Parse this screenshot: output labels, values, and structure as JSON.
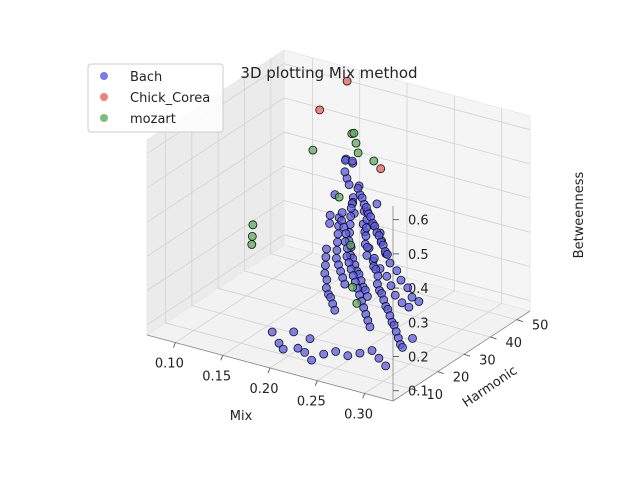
{
  "chart_data": {
    "type": "scatter",
    "title": "3D plotting Mix method",
    "xlabel": "Mix",
    "ylabel": "Harmonic",
    "zlabel": "Betweenness",
    "xticks": [
      "0.10",
      "0.15",
      "0.20",
      "0.25",
      "0.30"
    ],
    "yticks": [
      "10",
      "20",
      "30",
      "40",
      "50"
    ],
    "zticks": [
      "0.1",
      "0.2",
      "0.3",
      "0.4",
      "0.5",
      "0.6"
    ],
    "xlim": [
      0.07,
      0.33
    ],
    "ylim": [
      3,
      55
    ],
    "zlim": [
      0.07,
      0.64
    ],
    "legend": {
      "position": "top-left"
    },
    "series": [
      {
        "name": "Bach",
        "color": "#5a5ae6",
        "points": [
          [
            0.155,
            48,
            0.42
          ],
          [
            0.165,
            47,
            0.42
          ],
          [
            0.16,
            42,
            0.35
          ],
          [
            0.18,
            44,
            0.38
          ],
          [
            0.185,
            40,
            0.37
          ],
          [
            0.19,
            38,
            0.37
          ],
          [
            0.195,
            36,
            0.38
          ],
          [
            0.2,
            35,
            0.36
          ],
          [
            0.205,
            37,
            0.36
          ],
          [
            0.21,
            40,
            0.37
          ],
          [
            0.215,
            33,
            0.35
          ],
          [
            0.22,
            35,
            0.34
          ],
          [
            0.225,
            30,
            0.35
          ],
          [
            0.23,
            34,
            0.33
          ],
          [
            0.235,
            28,
            0.32
          ],
          [
            0.24,
            31,
            0.33
          ],
          [
            0.245,
            26,
            0.3
          ],
          [
            0.25,
            29,
            0.31
          ],
          [
            0.255,
            25,
            0.29
          ],
          [
            0.26,
            27,
            0.3
          ],
          [
            0.265,
            24,
            0.28
          ],
          [
            0.27,
            26,
            0.29
          ],
          [
            0.275,
            22,
            0.27
          ],
          [
            0.28,
            24,
            0.28
          ],
          [
            0.285,
            20,
            0.26
          ],
          [
            0.29,
            23,
            0.27
          ],
          [
            0.295,
            19,
            0.25
          ],
          [
            0.3,
            21,
            0.26
          ],
          [
            0.305,
            18,
            0.25
          ],
          [
            0.31,
            20,
            0.26
          ],
          [
            0.2,
            40,
            0.34
          ],
          [
            0.205,
            38,
            0.33
          ],
          [
            0.21,
            36,
            0.32
          ],
          [
            0.215,
            34,
            0.31
          ],
          [
            0.22,
            32,
            0.3
          ],
          [
            0.225,
            31,
            0.3
          ],
          [
            0.23,
            29,
            0.29
          ],
          [
            0.235,
            30,
            0.28
          ],
          [
            0.24,
            28,
            0.27
          ],
          [
            0.245,
            27,
            0.27
          ],
          [
            0.25,
            26,
            0.26
          ],
          [
            0.255,
            24,
            0.25
          ],
          [
            0.26,
            23,
            0.24
          ],
          [
            0.265,
            22,
            0.24
          ],
          [
            0.27,
            21,
            0.23
          ],
          [
            0.275,
            20,
            0.22
          ],
          [
            0.28,
            19,
            0.22
          ],
          [
            0.285,
            18,
            0.21
          ],
          [
            0.29,
            17,
            0.2
          ],
          [
            0.295,
            16,
            0.2
          ],
          [
            0.3,
            15,
            0.19
          ],
          [
            0.305,
            14,
            0.18
          ],
          [
            0.31,
            13,
            0.17
          ],
          [
            0.315,
            12,
            0.17
          ],
          [
            0.32,
            14,
            0.19
          ],
          [
            0.18,
            41,
            0.33
          ],
          [
            0.185,
            39,
            0.32
          ],
          [
            0.19,
            37,
            0.31
          ],
          [
            0.195,
            35,
            0.3
          ],
          [
            0.2,
            33,
            0.29
          ],
          [
            0.205,
            32,
            0.28
          ],
          [
            0.21,
            30,
            0.27
          ],
          [
            0.215,
            29,
            0.27
          ],
          [
            0.22,
            28,
            0.26
          ],
          [
            0.225,
            27,
            0.25
          ],
          [
            0.23,
            26,
            0.25
          ],
          [
            0.235,
            25,
            0.24
          ],
          [
            0.24,
            24,
            0.23
          ],
          [
            0.245,
            23,
            0.23
          ],
          [
            0.25,
            22,
            0.22
          ],
          [
            0.17,
            40,
            0.3
          ],
          [
            0.175,
            38,
            0.29
          ],
          [
            0.18,
            36,
            0.28
          ],
          [
            0.185,
            34,
            0.27
          ],
          [
            0.19,
            32,
            0.26
          ],
          [
            0.195,
            30,
            0.25
          ],
          [
            0.2,
            29,
            0.24
          ],
          [
            0.205,
            28,
            0.23
          ],
          [
            0.21,
            27,
            0.22
          ],
          [
            0.215,
            26,
            0.21
          ],
          [
            0.165,
            37,
            0.22
          ],
          [
            0.17,
            35,
            0.21
          ],
          [
            0.175,
            33,
            0.2
          ],
          [
            0.18,
            31,
            0.19
          ],
          [
            0.185,
            30,
            0.18
          ],
          [
            0.19,
            28,
            0.17
          ],
          [
            0.195,
            27,
            0.16
          ],
          [
            0.2,
            26,
            0.16
          ],
          [
            0.205,
            25,
            0.15
          ],
          [
            0.21,
            24,
            0.14
          ],
          [
            0.18,
            33,
            0.35
          ],
          [
            0.185,
            31,
            0.34
          ],
          [
            0.19,
            34,
            0.36
          ],
          [
            0.195,
            32,
            0.35
          ],
          [
            0.2,
            31,
            0.34
          ],
          [
            0.205,
            30,
            0.33
          ],
          [
            0.21,
            28,
            0.32
          ],
          [
            0.215,
            27,
            0.31
          ],
          [
            0.22,
            25,
            0.3
          ],
          [
            0.225,
            24,
            0.29
          ],
          [
            0.23,
            23,
            0.28
          ],
          [
            0.235,
            22,
            0.27
          ],
          [
            0.24,
            21,
            0.26
          ],
          [
            0.245,
            20,
            0.25
          ],
          [
            0.25,
            19,
            0.24
          ],
          [
            0.255,
            18,
            0.23
          ],
          [
            0.26,
            17,
            0.22
          ],
          [
            0.265,
            16,
            0.21
          ],
          [
            0.27,
            15,
            0.2
          ],
          [
            0.275,
            14,
            0.19
          ],
          [
            0.19,
            40,
            0.4
          ],
          [
            0.195,
            39,
            0.39
          ],
          [
            0.2,
            38,
            0.39
          ],
          [
            0.205,
            37,
            0.38
          ],
          [
            0.21,
            36,
            0.38
          ],
          [
            0.215,
            35,
            0.37
          ],
          [
            0.22,
            34,
            0.37
          ],
          [
            0.225,
            33,
            0.36
          ],
          [
            0.23,
            32,
            0.36
          ],
          [
            0.235,
            31,
            0.35
          ],
          [
            0.24,
            30,
            0.35
          ],
          [
            0.245,
            29,
            0.34
          ],
          [
            0.25,
            28,
            0.34
          ],
          [
            0.255,
            27,
            0.33
          ],
          [
            0.26,
            26,
            0.33
          ],
          [
            0.17,
            43,
            0.4
          ],
          [
            0.175,
            42,
            0.39
          ],
          [
            0.165,
            44,
            0.41
          ],
          [
            0.16,
            46,
            0.43
          ],
          [
            0.17,
            45,
            0.44
          ],
          [
            0.29,
            12,
            0.12
          ],
          [
            0.3,
            11,
            0.11
          ],
          [
            0.28,
            13,
            0.13
          ],
          [
            0.27,
            12,
            0.12
          ],
          [
            0.26,
            11,
            0.11
          ],
          [
            0.2,
            12,
            0.13
          ],
          [
            0.21,
            10,
            0.1
          ],
          [
            0.22,
            9,
            0.1
          ],
          [
            0.23,
            8,
            0.09
          ],
          [
            0.19,
            10,
            0.1
          ],
          [
            0.24,
            9,
            0.11
          ],
          [
            0.25,
            10,
            0.12
          ],
          [
            0.18,
            11,
            0.12
          ],
          [
            0.2,
            8,
            0.1
          ],
          [
            0.22,
            11,
            0.13
          ]
        ]
      },
      {
        "name": "Chick_Corea",
        "color": "#e8605a",
        "points": [
          [
            0.13,
            47,
            0.55
          ],
          [
            0.145,
            52,
            0.62
          ],
          [
            0.2,
            45,
            0.44
          ]
        ]
      },
      {
        "name": "mozart",
        "color": "#5aae5a",
        "points": [
          [
            0.12,
            48,
            0.42
          ],
          [
            0.15,
            52,
            0.47
          ],
          [
            0.155,
            51,
            0.48
          ],
          [
            0.16,
            50,
            0.46
          ],
          [
            0.165,
            49,
            0.44
          ],
          [
            0.19,
            46,
            0.45
          ],
          [
            0.17,
            40,
            0.36
          ],
          [
            0.21,
            30,
            0.3
          ],
          [
            0.24,
            20,
            0.25
          ],
          [
            0.25,
            18,
            0.22
          ],
          [
            0.09,
            36,
            0.24
          ],
          [
            0.095,
            34,
            0.22
          ],
          [
            0.1,
            32,
            0.21
          ]
        ]
      }
    ]
  }
}
